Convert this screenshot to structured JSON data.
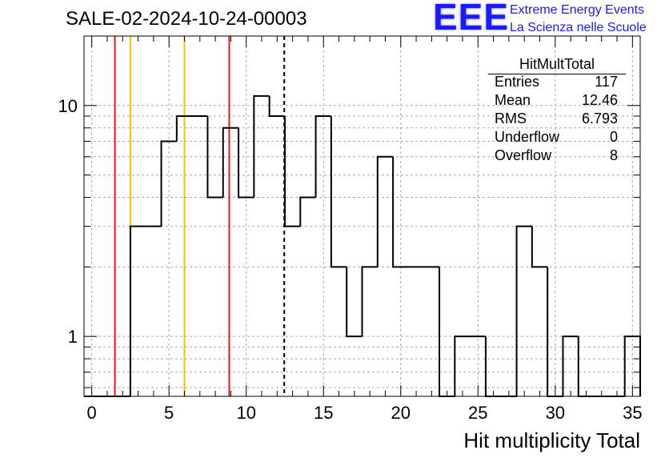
{
  "header": {
    "title": "SALE-02-2024-10-24-00003"
  },
  "logo": {
    "mark": "EEE",
    "line1": "Extreme Energy Events",
    "line2": "La Scienza nelle Scuole"
  },
  "stats_box": {
    "title": "HitMultTotal",
    "rows": [
      {
        "label": "Entries",
        "value": "117"
      },
      {
        "label": "Mean",
        "value": "12.46"
      },
      {
        "label": "RMS",
        "value": "6.793"
      },
      {
        "label": "Underflow",
        "value": "0"
      },
      {
        "label": "Overflow",
        "value": "8"
      }
    ]
  },
  "chart_data": {
    "type": "bar",
    "subtype": "histogram",
    "xlabel": "Hit multiplicity Total",
    "ylabel": "",
    "xlim": [
      -0.5,
      35.5
    ],
    "ylim": [
      0.55,
      20
    ],
    "y_scale": "log",
    "grid": true,
    "bin_width": 1,
    "bins": [
      {
        "x": 0,
        "y": 0
      },
      {
        "x": 1,
        "y": 0
      },
      {
        "x": 2,
        "y": 0
      },
      {
        "x": 3,
        "y": 3
      },
      {
        "x": 4,
        "y": 3
      },
      {
        "x": 5,
        "y": 7
      },
      {
        "x": 6,
        "y": 9
      },
      {
        "x": 7,
        "y": 9
      },
      {
        "x": 8,
        "y": 4
      },
      {
        "x": 9,
        "y": 8
      },
      {
        "x": 10,
        "y": 4
      },
      {
        "x": 11,
        "y": 11
      },
      {
        "x": 12,
        "y": 9
      },
      {
        "x": 13,
        "y": 3
      },
      {
        "x": 14,
        "y": 4
      },
      {
        "x": 15,
        "y": 9
      },
      {
        "x": 16,
        "y": 2
      },
      {
        "x": 17,
        "y": 1
      },
      {
        "x": 18,
        "y": 2
      },
      {
        "x": 19,
        "y": 6
      },
      {
        "x": 20,
        "y": 2
      },
      {
        "x": 21,
        "y": 2
      },
      {
        "x": 22,
        "y": 2
      },
      {
        "x": 23,
        "y": 0
      },
      {
        "x": 24,
        "y": 1
      },
      {
        "x": 25,
        "y": 1
      },
      {
        "x": 26,
        "y": 0
      },
      {
        "x": 27,
        "y": 0
      },
      {
        "x": 28,
        "y": 3
      },
      {
        "x": 29,
        "y": 2
      },
      {
        "x": 30,
        "y": 0
      },
      {
        "x": 31,
        "y": 1
      },
      {
        "x": 32,
        "y": 0
      },
      {
        "x": 33,
        "y": 0
      },
      {
        "x": 34,
        "y": 0
      },
      {
        "x": 35,
        "y": 1
      }
    ],
    "x_ticks": [
      0,
      5,
      10,
      15,
      20,
      25,
      30,
      35
    ],
    "y_ticks": [
      {
        "value": 1,
        "label": "1"
      },
      {
        "value": 10,
        "label": "10"
      }
    ],
    "vertical_lines": [
      {
        "x": 1.5,
        "color": "#e8191a",
        "style": "solid"
      },
      {
        "x": 2.5,
        "color": "#f5c400",
        "style": "solid"
      },
      {
        "x": 6.0,
        "color": "#f5c400",
        "style": "solid"
      },
      {
        "x": 8.9,
        "color": "#e8191a",
        "style": "solid"
      },
      {
        "x": 12.46,
        "color": "#000000",
        "style": "dashed"
      }
    ]
  }
}
